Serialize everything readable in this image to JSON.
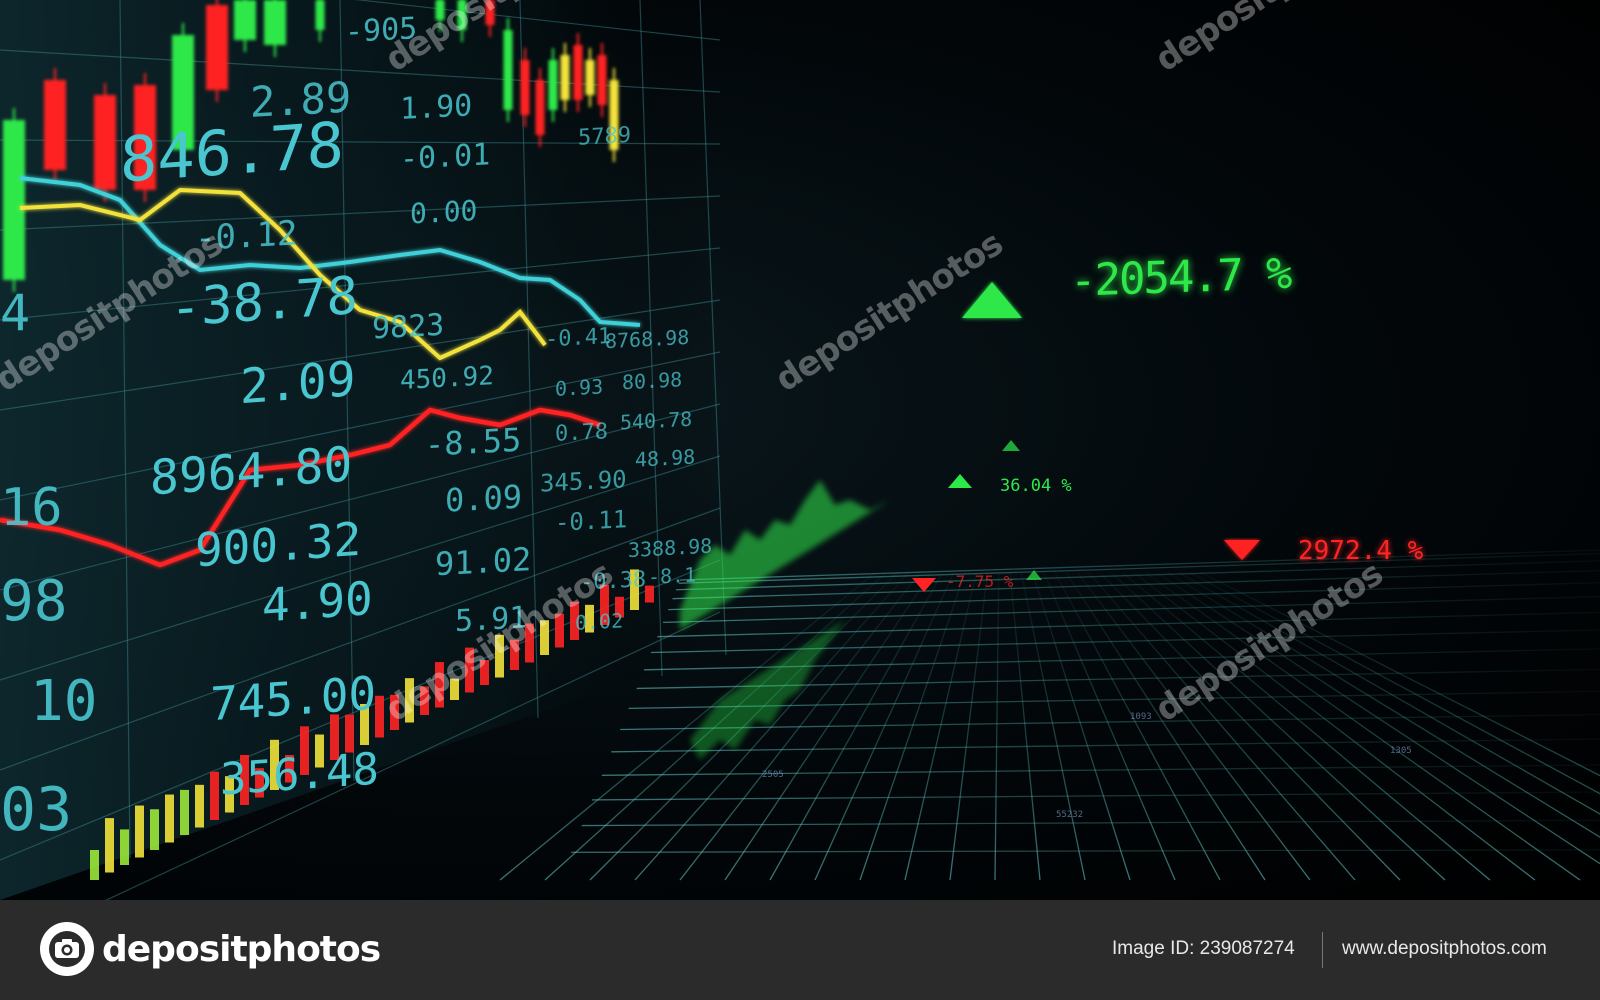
{
  "board": {
    "big_values": [
      "846.78",
      "-38.78",
      "2.09",
      "8964.80",
      "900.32",
      "4.90",
      "745.00",
      "356.48"
    ],
    "mid_values": [
      "-905",
      "2.89",
      "1.90",
      "-0.01",
      "0.00",
      "-0.12",
      "9823",
      "450.92",
      "-8.55",
      "0.09",
      "91.02",
      "5.91"
    ],
    "small_values": [
      "5789",
      "-0.41",
      "8768.98",
      "0.93",
      "80.98",
      "0.78",
      "540.78",
      "345.90",
      "48.98",
      "-0.11",
      "3388.98",
      "-0.38",
      "-8.1",
      "0.02"
    ],
    "edge_values": [
      "4",
      "16",
      "98",
      "10",
      "03"
    ]
  },
  "tickers": {
    "main": "-2054.7 %",
    "up_small": "36.04 %",
    "down_right": "2972.4 %",
    "down_left": "-7.75 %"
  },
  "grid_labels": [
    "2505",
    "55232",
    "1093",
    "1305"
  ],
  "colors": {
    "cyan": "#3fd0d8",
    "green": "#2ee84a",
    "red": "#ff2424",
    "yellow": "#f2e23a",
    "footer_bg": "#2b2b2b"
  },
  "watermark": {
    "text": "depositphotos"
  },
  "footer": {
    "brand": "depositphotos",
    "image_id": "Image ID: 239087274",
    "site": "www.depositphotos.com"
  }
}
